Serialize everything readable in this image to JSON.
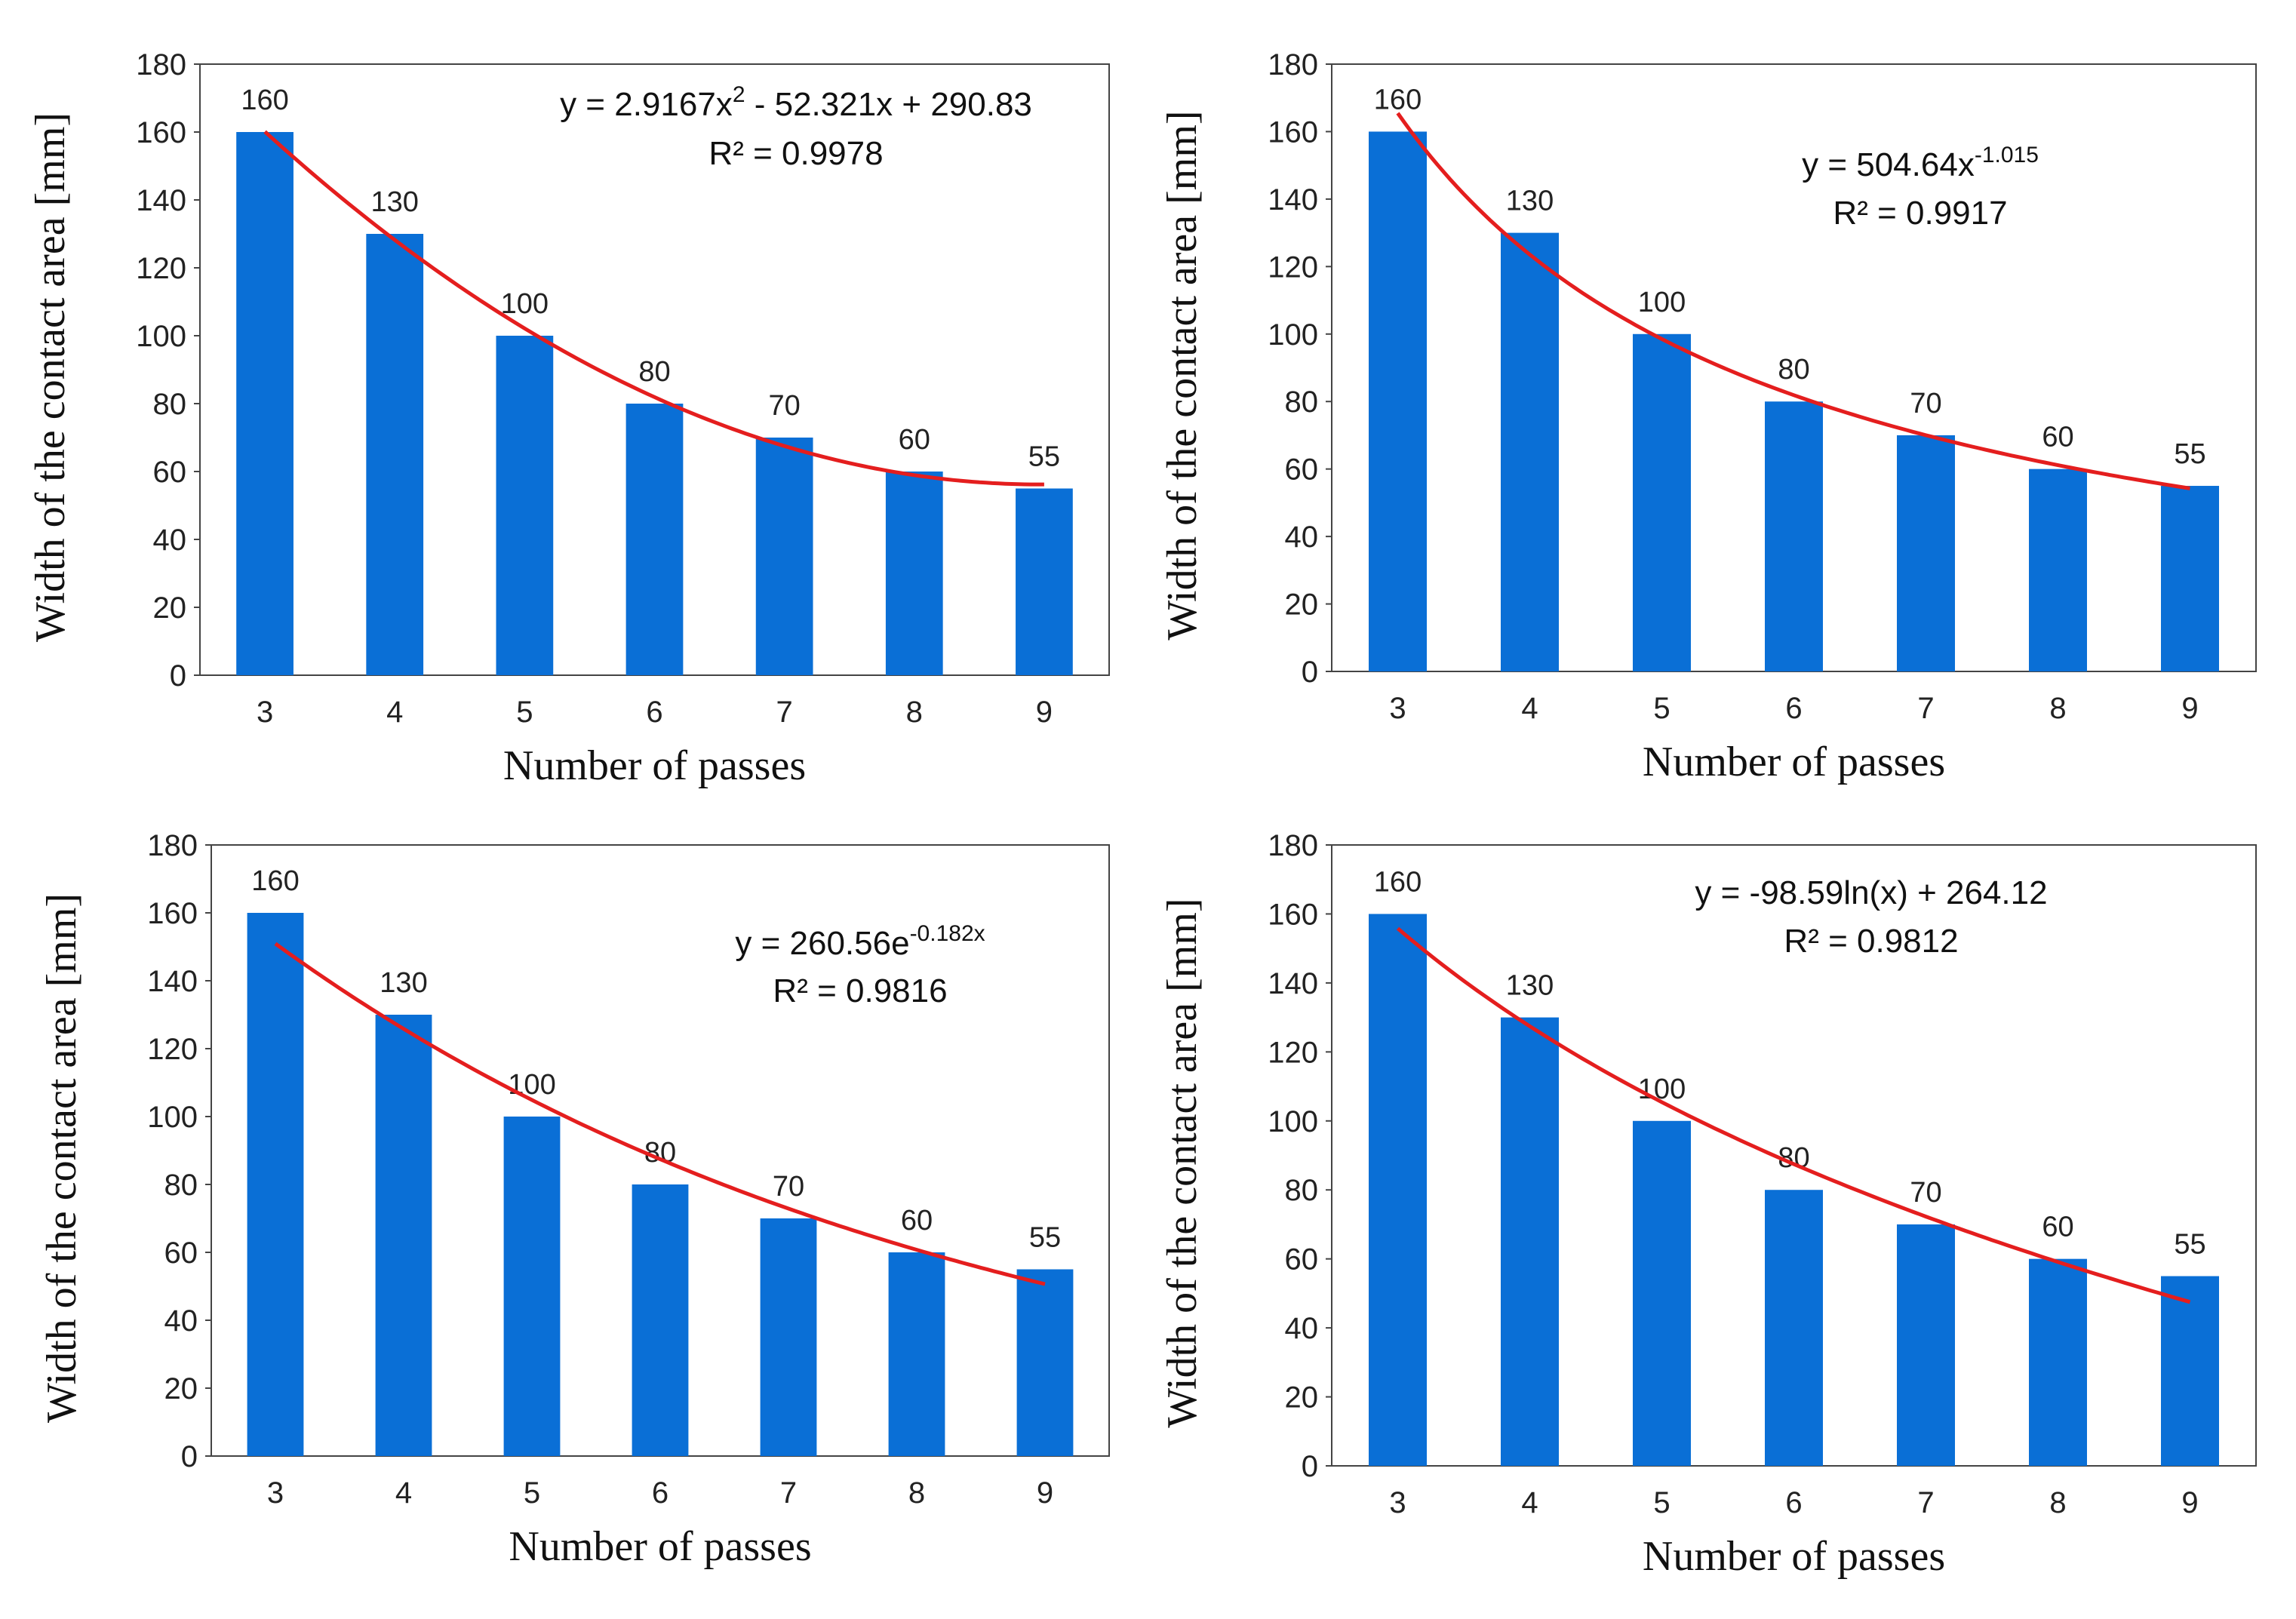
{
  "chart_data": [
    {
      "type": "bar",
      "categories": [
        "3",
        "4",
        "5",
        "6",
        "7",
        "8",
        "9"
      ],
      "values": [
        160,
        130,
        100,
        80,
        70,
        60,
        55
      ],
      "data_labels": [
        "160",
        "130",
        "100",
        "80",
        "70",
        "60",
        "55"
      ],
      "ylim": [
        0,
        180
      ],
      "yticks": [
        "0",
        "20",
        "40",
        "60",
        "80",
        "100",
        "120",
        "140",
        "160",
        "180"
      ],
      "xlabel": "Number of passes",
      "ylabel": "Width of the contact area [mm]",
      "trendline": {
        "kind": "polynomial",
        "a": 2.9167,
        "b": -52.321,
        "c": 290.83
      },
      "equation": {
        "main": "y = 2.9167x",
        "sup": "2",
        "tail": " - 52.321x + 290.83"
      },
      "r2": "R² = 0.9978",
      "bar_color": "#0a6fd6",
      "trend_color": "#e41e1e"
    },
    {
      "type": "bar",
      "categories": [
        "3",
        "4",
        "5",
        "6",
        "7",
        "8",
        "9"
      ],
      "values": [
        160,
        130,
        100,
        80,
        70,
        60,
        55
      ],
      "data_labels": [
        "160",
        "130",
        "100",
        "80",
        "70",
        "60",
        "55"
      ],
      "ylim": [
        0,
        180
      ],
      "yticks": [
        "0",
        "20",
        "40",
        "60",
        "80",
        "100",
        "120",
        "140",
        "160",
        "180"
      ],
      "xlabel": "Number of passes",
      "ylabel": "Width of the contact area [mm]",
      "trendline": {
        "kind": "power",
        "a": 504.64,
        "b": -1.015
      },
      "equation": {
        "main": "y = 504.64x",
        "sup": "-1.015",
        "tail": ""
      },
      "r2": "R² = 0.9917",
      "bar_color": "#0a6fd6",
      "trend_color": "#e41e1e"
    },
    {
      "type": "bar",
      "categories": [
        "3",
        "4",
        "5",
        "6",
        "7",
        "8",
        "9"
      ],
      "values": [
        160,
        130,
        100,
        80,
        70,
        60,
        55
      ],
      "data_labels": [
        "160",
        "130",
        "100",
        "80",
        "70",
        "60",
        "55"
      ],
      "ylim": [
        0,
        180
      ],
      "yticks": [
        "0",
        "20",
        "40",
        "60",
        "80",
        "100",
        "120",
        "140",
        "160",
        "180"
      ],
      "xlabel": "Number of passes",
      "ylabel": "Width of the contact area [mm]",
      "trendline": {
        "kind": "exponential",
        "a": 260.56,
        "b": -0.182
      },
      "equation": {
        "main": "y = 260.56e",
        "sup": "-0.182x",
        "tail": ""
      },
      "r2": "R² = 0.9816",
      "bar_color": "#0a6fd6",
      "trend_color": "#e41e1e"
    },
    {
      "type": "bar",
      "categories": [
        "3",
        "4",
        "5",
        "6",
        "7",
        "8",
        "9"
      ],
      "values": [
        160,
        130,
        100,
        80,
        70,
        60,
        55
      ],
      "data_labels": [
        "160",
        "130",
        "100",
        "80",
        "70",
        "60",
        "55"
      ],
      "ylim": [
        0,
        180
      ],
      "yticks": [
        "0",
        "20",
        "40",
        "60",
        "80",
        "100",
        "120",
        "140",
        "160",
        "180"
      ],
      "xlabel": "Number of passes",
      "ylabel": "Width of the contact area [mm]",
      "trendline": {
        "kind": "logarithmic",
        "a": -98.59,
        "b": 264.12
      },
      "equation": {
        "main": "y = -98.59ln(x) + 264.12",
        "sup": "",
        "tail": ""
      },
      "r2": "R² = 0.9812",
      "bar_color": "#0a6fd6",
      "trend_color": "#e41e1e"
    }
  ]
}
